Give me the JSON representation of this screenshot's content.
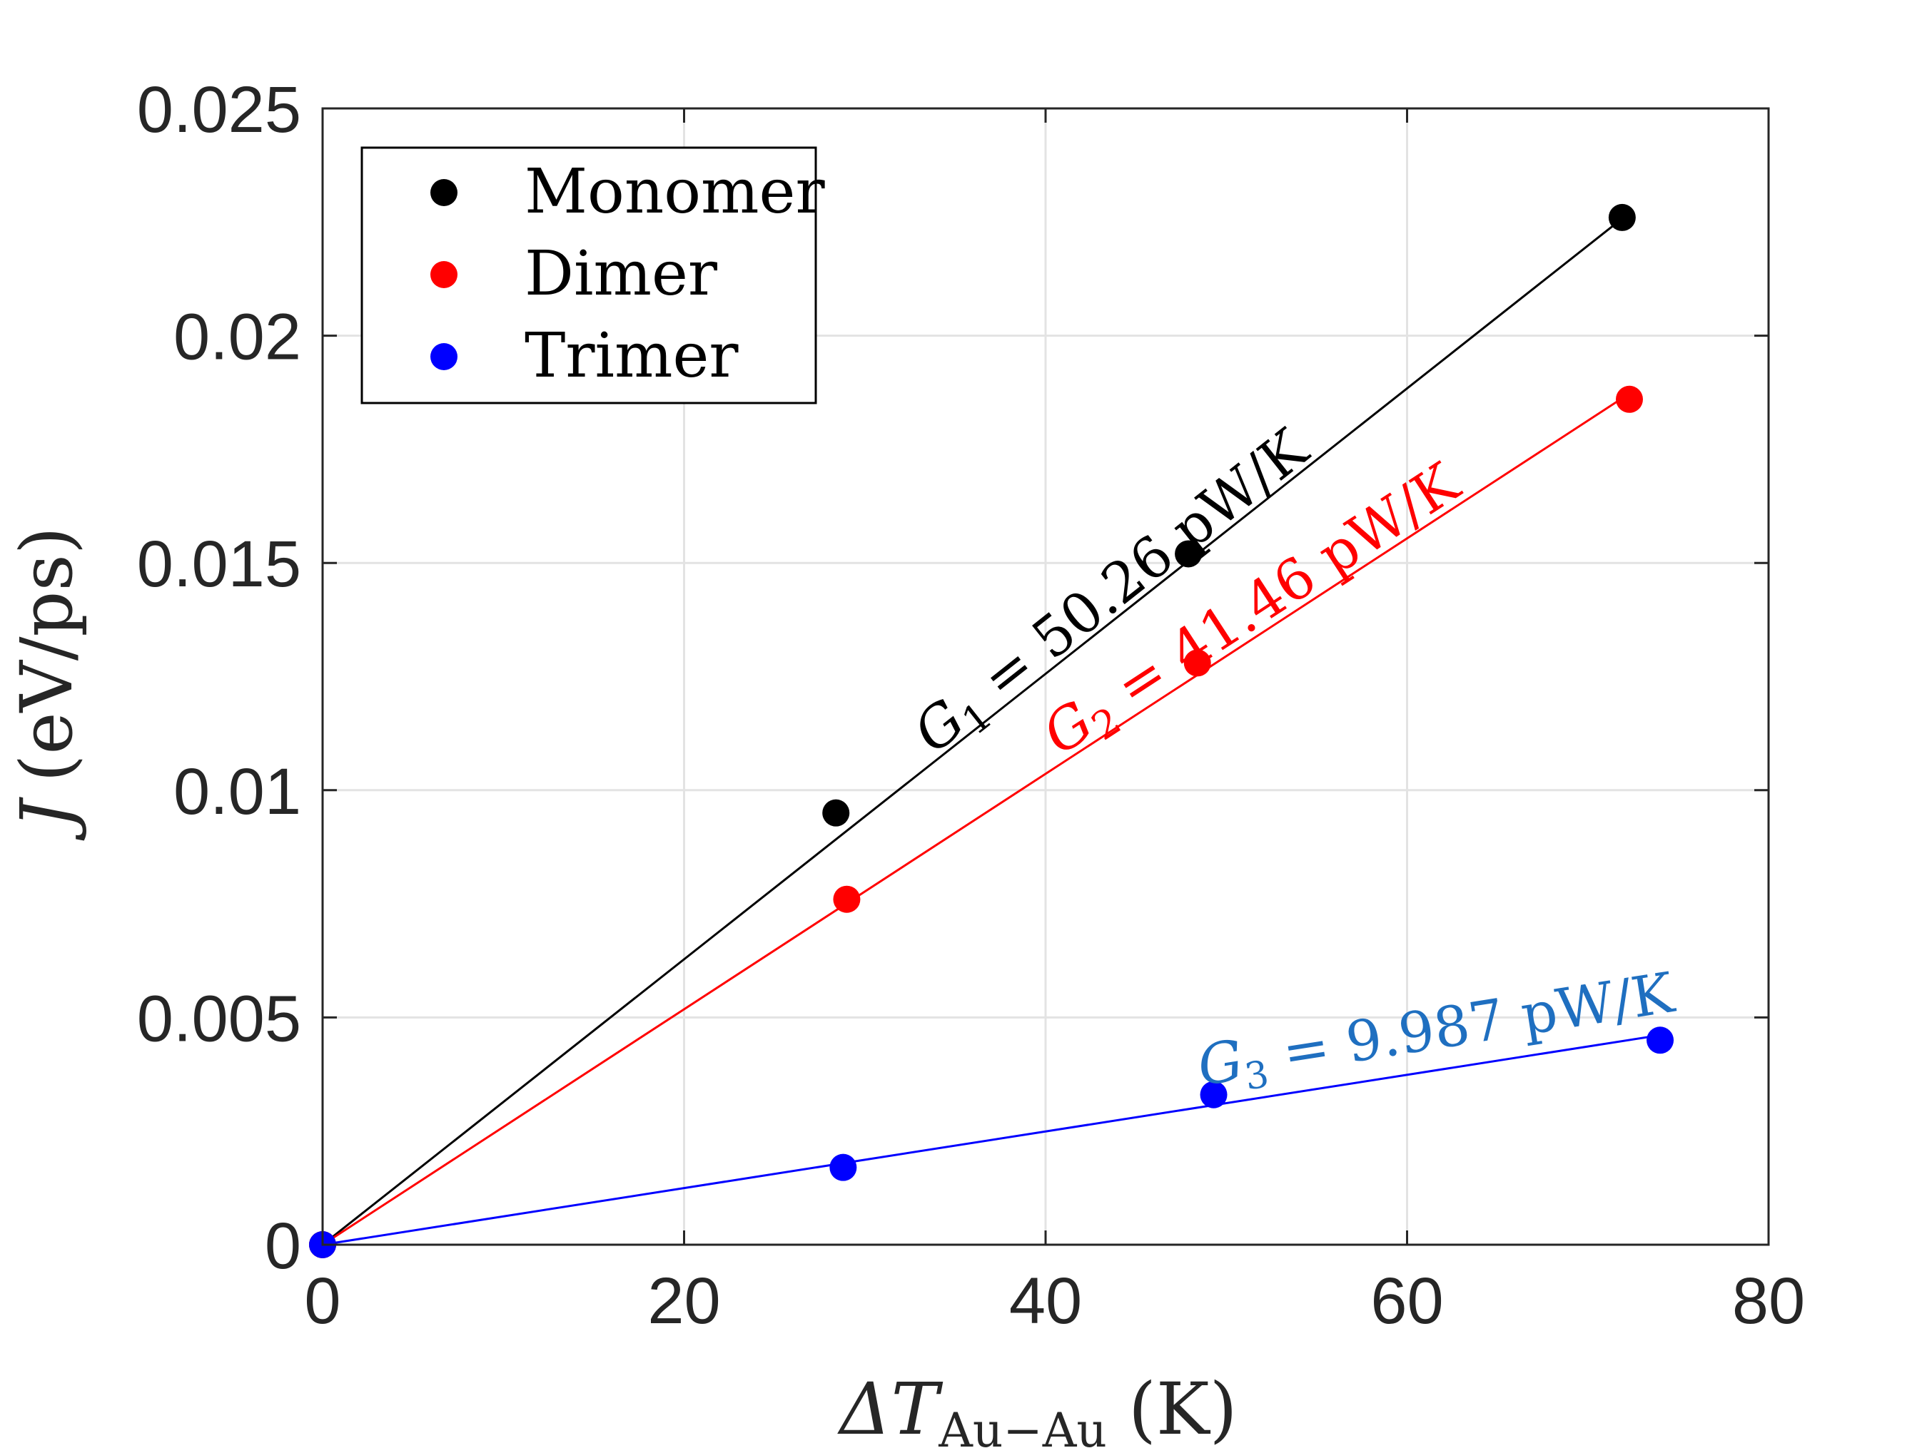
{
  "chart_data": {
    "type": "scatter",
    "xlabel": {
      "symbol": "ΔT",
      "subscript": "Au−Au",
      "unit": "(K)"
    },
    "ylabel": {
      "symbol": "J",
      "unit": "(eV/ps)"
    },
    "xlim": [
      0,
      80
    ],
    "ylim": [
      0,
      0.025
    ],
    "xticks": [
      0,
      20,
      40,
      60,
      80
    ],
    "xtick_labels": [
      "0",
      "20",
      "40",
      "60",
      "80"
    ],
    "yticks": [
      0,
      0.005,
      0.01,
      0.015,
      0.02,
      0.025
    ],
    "ytick_labels": [
      "0",
      "0.005",
      "0.01",
      "0.015",
      "0.02",
      "0.025"
    ],
    "grid": true,
    "legend_position": "top-left",
    "series": [
      {
        "name": "Monomer",
        "color": "#000000",
        "x": [
          0,
          28.4,
          47.9,
          71.9
        ],
        "y": [
          0,
          0.0095,
          0.0152,
          0.0226
        ],
        "fit": {
          "slope": 0.000314,
          "label": {
            "symbol": "G",
            "sub": "1",
            "text": " = 50.26 pW/K"
          }
        }
      },
      {
        "name": "Dimer",
        "color": "#ff0000",
        "x": [
          0,
          29.0,
          48.4,
          72.3
        ],
        "y": [
          0,
          0.0076,
          0.0128,
          0.0186
        ],
        "fit": {
          "slope": 0.000259,
          "label": {
            "symbol": "G",
            "sub": "2",
            "text": " = 41.46 pW/K"
          }
        }
      },
      {
        "name": "Trimer",
        "color": "#0000ff",
        "x": [
          0,
          28.8,
          49.3,
          74.0
        ],
        "y": [
          0,
          0.0017,
          0.0033,
          0.0045
        ],
        "fit": {
          "slope": 6.23e-05,
          "label": {
            "symbol": "G",
            "sub": "3",
            "text": " = 9.987 pW/K"
          },
          "label_color": "#1f6fc0"
        }
      }
    ]
  }
}
